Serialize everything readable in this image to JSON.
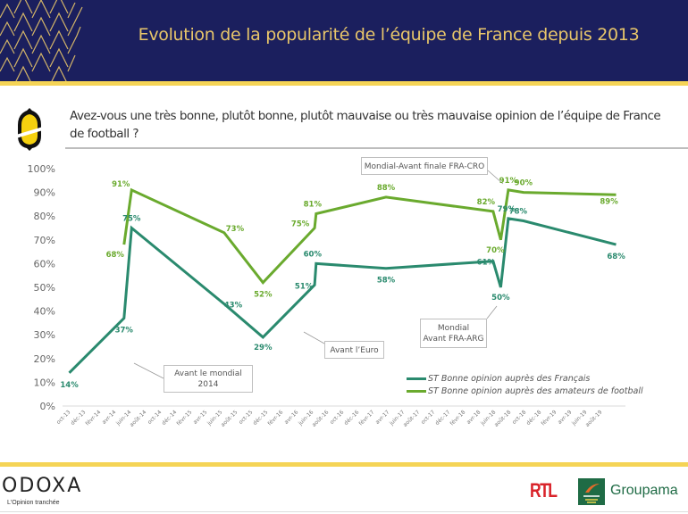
{
  "header": {
    "title": "Evolution de la popularité de l’équipe de France depuis 2013"
  },
  "question": {
    "text": "Avez-vous une très bonne, plutôt bonne, plutôt mauvaise ou très mauvaise opinion de l’équipe de France de football ?"
  },
  "annotations": {
    "mondial_2014": [
      "Avant le mondial",
      "2014"
    ],
    "euro": [
      "Avant l’Euro"
    ],
    "fra_arg": [
      "Mondial",
      "Avant FRA-ARG"
    ],
    "fra_cro": [
      "Mondial-Avant finale FRA-CRO"
    ]
  },
  "footer": {
    "brand": "ODOXA",
    "tagline": "L'Opinion tranchée",
    "partner1": "RTL",
    "partner2": "Groupama"
  },
  "colors": {
    "header_bg": "#1b1f5e",
    "accent_gold": "#e8c66a",
    "stripe_yellow": "#f5d456",
    "series_francais": "#2a8a6e",
    "series_amateurs": "#6aaa2e"
  },
  "chart_data": {
    "type": "line",
    "title": "Evolution de la popularité de l’équipe de France depuis 2013",
    "xlabel": "",
    "ylabel": "",
    "ylim": [
      0,
      100
    ],
    "y_ticks": [
      "0%",
      "10%",
      "20%",
      "30%",
      "40%",
      "50%",
      "60%",
      "70%",
      "80%",
      "90%",
      "100%"
    ],
    "x_ticks": [
      "oct-13",
      "déc-13",
      "févr-14",
      "avr-14",
      "juin-14",
      "août-14",
      "oct-14",
      "déc-14",
      "févr-15",
      "avr-15",
      "juin-15",
      "août-15",
      "oct-15",
      "déc-15",
      "févr-16",
      "avr-16",
      "juin-16",
      "août-16",
      "oct-16",
      "déc-16",
      "févr-17",
      "avr-17",
      "juin-17",
      "août-17",
      "oct-17",
      "déc-17",
      "févr-18",
      "avr-18",
      "juin-18",
      "août-18",
      "oct-18",
      "déc-18",
      "févr-19",
      "avr-19",
      "juin-19",
      "août-19"
    ],
    "x_unit": "months since oct-13",
    "legend_position": "bottom-right",
    "grid": false,
    "series": [
      {
        "name": "ST Bonne opinion auprès des Français",
        "points": [
          {
            "x": 0.3,
            "y": 14
          },
          {
            "x": 7.5,
            "y": 37
          },
          {
            "x": 8.5,
            "y": 75
          },
          {
            "x": 20.7,
            "y": 43
          },
          {
            "x": 25.8,
            "y": 29
          },
          {
            "x": 32.6,
            "y": 51
          },
          {
            "x": 32.8,
            "y": 60
          },
          {
            "x": 42,
            "y": 58
          },
          {
            "x": 56.1,
            "y": 61
          },
          {
            "x": 57.1,
            "y": 50
          },
          {
            "x": 58.1,
            "y": 79
          },
          {
            "x": 60.1,
            "y": 78
          },
          {
            "x": 72.3,
            "y": 68
          }
        ]
      },
      {
        "name": "ST Bonne opinion auprès des amateurs de football",
        "points": [
          {
            "x": 7.5,
            "y": 68
          },
          {
            "x": 8.5,
            "y": 91
          },
          {
            "x": 20.7,
            "y": 73
          },
          {
            "x": 25.8,
            "y": 52
          },
          {
            "x": 32.6,
            "y": 75
          },
          {
            "x": 32.8,
            "y": 81
          },
          {
            "x": 42,
            "y": 88
          },
          {
            "x": 56.1,
            "y": 82
          },
          {
            "x": 57.1,
            "y": 70
          },
          {
            "x": 58.1,
            "y": 91
          },
          {
            "x": 60.1,
            "y": 90
          },
          {
            "x": 72.3,
            "y": 89
          }
        ]
      }
    ]
  }
}
